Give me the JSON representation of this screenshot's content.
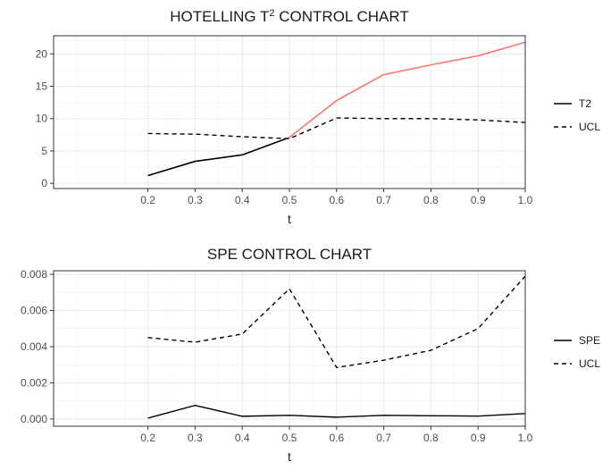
{
  "chart_data": [
    {
      "type": "line",
      "title": "HOTELLING T",
      "title_superscript": "2",
      "title_suffix": " CONTROL CHART",
      "xlabel": "t",
      "ylabel": "",
      "xlim": [
        0.0,
        1.0
      ],
      "ylim": [
        -0.8,
        22.8
      ],
      "x_ticks": [
        0.2,
        0.3,
        0.4,
        0.5,
        0.6,
        0.7,
        0.8,
        0.9,
        1.0
      ],
      "x_tick_labels": [
        "0.2",
        "0.3",
        "0.4",
        "0.5",
        "0.6",
        "0.7",
        "0.8",
        "0.9",
        "1.0"
      ],
      "y_ticks": [
        0,
        5,
        10,
        15,
        20
      ],
      "y_tick_labels": [
        "0",
        "5",
        "10",
        "15",
        "20"
      ],
      "x": [
        0.2,
        0.3,
        0.4,
        0.5,
        0.6,
        0.7,
        0.8,
        0.9,
        1.0
      ],
      "grid": true,
      "legend_position": "right",
      "series": [
        {
          "name": "T2",
          "values": [
            1.2,
            3.4,
            4.4,
            7.1,
            12.8,
            16.8,
            18.3,
            19.7,
            21.8
          ],
          "style": "solid",
          "color": "#000000",
          "out_of_control_color": "#f8766d"
        },
        {
          "name": "UCL",
          "values": [
            7.7,
            7.6,
            7.2,
            6.9,
            10.1,
            10.0,
            10.0,
            9.8,
            9.4
          ],
          "style": "dashed",
          "color": "#000000"
        }
      ]
    },
    {
      "type": "line",
      "title": "SPE CONTROL CHART",
      "xlabel": "t",
      "ylabel": "",
      "xlim": [
        0.0,
        1.0
      ],
      "ylim": [
        -0.0004,
        0.0082
      ],
      "x_ticks": [
        0.2,
        0.3,
        0.4,
        0.5,
        0.6,
        0.7,
        0.8,
        0.9,
        1.0
      ],
      "x_tick_labels": [
        "0.2",
        "0.3",
        "0.4",
        "0.5",
        "0.6",
        "0.7",
        "0.8",
        "0.9",
        "1.0"
      ],
      "y_ticks": [
        0.0,
        0.002,
        0.004,
        0.006,
        0.008
      ],
      "y_tick_labels": [
        "0.000",
        "0.002",
        "0.004",
        "0.006",
        "0.008"
      ],
      "x": [
        0.2,
        0.3,
        0.4,
        0.5,
        0.6,
        0.7,
        0.8,
        0.9,
        1.0
      ],
      "grid": true,
      "legend_position": "right",
      "series": [
        {
          "name": "SPE",
          "values": [
            5e-05,
            0.00075,
            0.00015,
            0.0002,
            0.0001,
            0.0002,
            0.00018,
            0.00016,
            0.0003
          ],
          "style": "solid",
          "color": "#000000"
        },
        {
          "name": "UCL",
          "values": [
            0.0045,
            0.00425,
            0.0047,
            0.0072,
            0.00285,
            0.00325,
            0.0038,
            0.005,
            0.0079
          ],
          "style": "dashed",
          "color": "#000000"
        }
      ]
    }
  ]
}
